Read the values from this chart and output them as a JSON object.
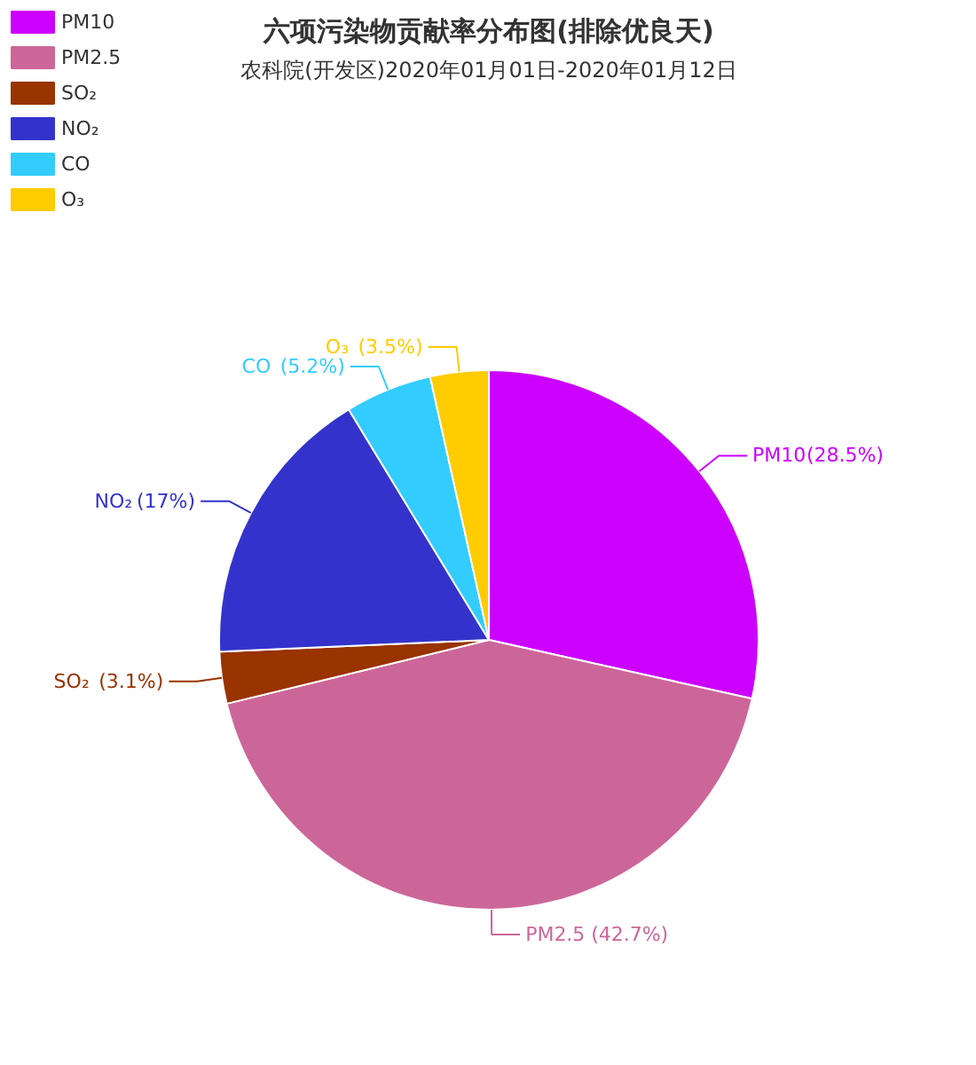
{
  "chart_data": {
    "type": "pie",
    "title": "六项污染物贡献率分布图(排除优良天)",
    "subtitle": "农科院(开发区)2020年01月01日-2020年01月12日",
    "categories": [
      "PM10",
      "PM2.5",
      "SO₂",
      "NO₂",
      "CO",
      "O₃"
    ],
    "values": [
      28.5,
      42.7,
      3.1,
      17,
      5.2,
      3.5
    ],
    "colors": [
      "#cc00ff",
      "#cc6699",
      "#993300",
      "#3333cc",
      "#33ccff",
      "#ffcc00"
    ],
    "value_labels": [
      "(28.5%)",
      "(42.7%)",
      "(3.1%)",
      "(17%)",
      "(5.2%)",
      "(3.5%)"
    ],
    "legend": "top left"
  }
}
